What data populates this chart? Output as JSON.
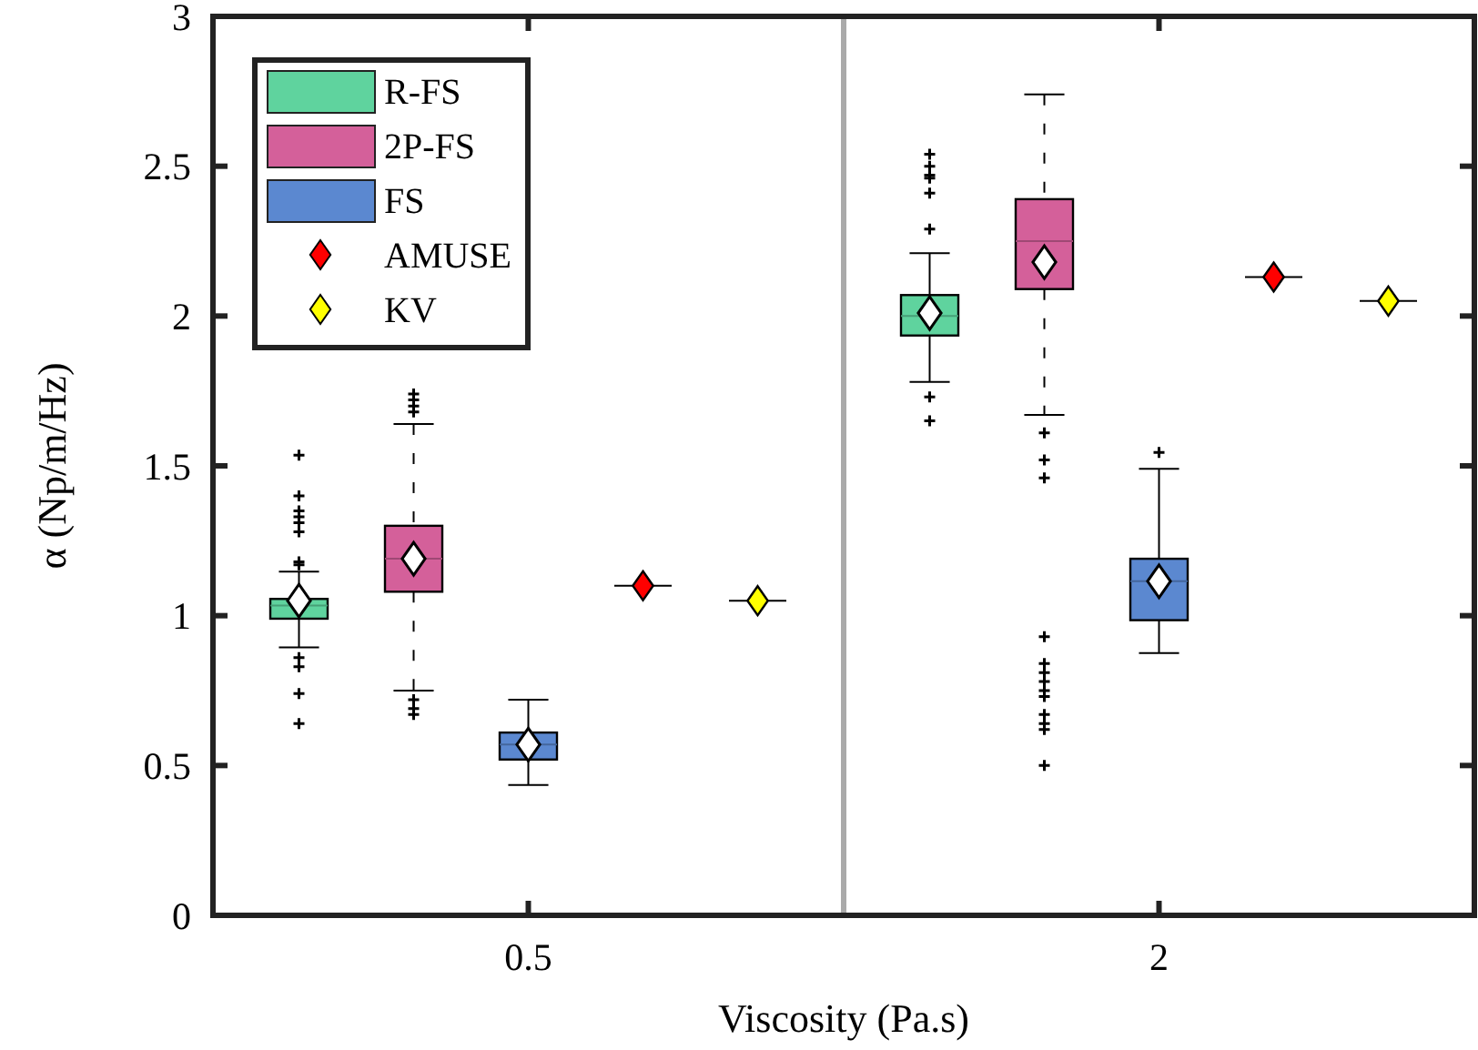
{
  "chart_data": {
    "type": "box",
    "xlabel": "Viscosity (Pa.s)",
    "ylabel": "α (Np/m/Hz)",
    "categories": [
      "0.5",
      "2"
    ],
    "ylim": [
      0,
      3
    ],
    "yticks": [
      0,
      0.5,
      1,
      1.5,
      2,
      2.5,
      3
    ],
    "legend": "top left",
    "grid": false,
    "series": [
      {
        "name": "R-FS",
        "type": "box",
        "color": "#5fd39e",
        "boxes": [
          {
            "low": 0.894,
            "q1": 0.99,
            "median": 1.034,
            "q3": 1.056,
            "high": 1.147,
            "mean": 1.05,
            "outliers": [
              1.536,
              1.4,
              1.35,
              1.33,
              1.31,
              1.28,
              1.18,
              1.17,
              0.86,
              0.83,
              0.74,
              0.64
            ]
          },
          {
            "low": 1.78,
            "q1": 1.935,
            "median": 2.0,
            "q3": 2.07,
            "high": 2.21,
            "mean": 2.01,
            "outliers": [
              2.54,
              2.5,
              2.47,
              2.46,
              2.41,
              2.29,
              1.73,
              1.65
            ]
          }
        ]
      },
      {
        "name": "2P-FS",
        "type": "box",
        "color": "#d4609a",
        "line_style": "dashed",
        "boxes": [
          {
            "low": 0.75,
            "q1": 1.08,
            "median": 1.19,
            "q3": 1.3,
            "high": 1.64,
            "mean": 1.19,
            "outliers": [
              1.74,
              1.72,
              1.7,
              1.68,
              0.72,
              0.69,
              0.67
            ]
          },
          {
            "low": 1.67,
            "q1": 2.09,
            "median": 2.25,
            "q3": 2.39,
            "high": 2.74,
            "mean": 2.18,
            "outliers": [
              1.61,
              1.52,
              1.46,
              0.93,
              0.84,
              0.81,
              0.78,
              0.75,
              0.73,
              0.67,
              0.64,
              0.62,
              0.5
            ]
          }
        ]
      },
      {
        "name": "FS",
        "type": "box",
        "color": "#5b88d0",
        "boxes": [
          {
            "low": 0.435,
            "q1": 0.52,
            "median": 0.57,
            "q3": 0.61,
            "high": 0.72,
            "mean": 0.57
          },
          {
            "low": 0.875,
            "q1": 0.985,
            "median": 1.115,
            "q3": 1.19,
            "high": 1.49,
            "mean": 1.115,
            "outliers": [
              1.545
            ]
          }
        ]
      },
      {
        "name": "AMUSE",
        "type": "scatter",
        "color": "#ff0000",
        "marker": "diamond",
        "values": [
          1.1,
          2.13
        ]
      },
      {
        "name": "KV",
        "type": "scatter",
        "color": "#ffff00",
        "marker": "diamond",
        "values": [
          1.05,
          2.05
        ]
      }
    ]
  }
}
